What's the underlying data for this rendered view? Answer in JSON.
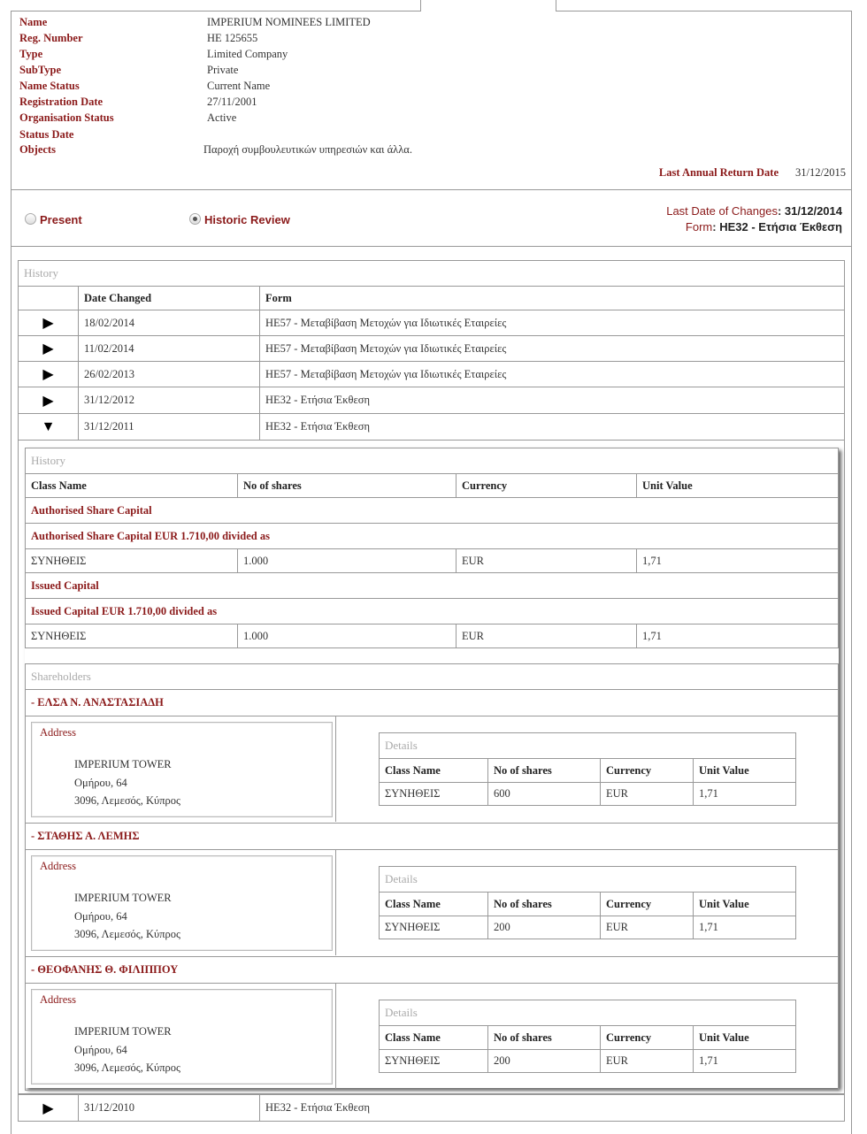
{
  "company": {
    "fields": [
      {
        "label": "Name",
        "value": "IMPERIUM NOMINEES LIMITED"
      },
      {
        "label": "Reg. Number",
        "value": "HE 125655"
      },
      {
        "label": "Type",
        "value": "Limited Company"
      },
      {
        "label": "SubType",
        "value": "Private"
      },
      {
        "label": "Name Status",
        "value": "Current Name"
      },
      {
        "label": "Registration Date",
        "value": "27/11/2001"
      },
      {
        "label": "Organisation Status",
        "value": "Active"
      },
      {
        "label": "Status Date",
        "value": ""
      },
      {
        "label": "Objects",
        "value": "Παροχή συμβουλευτικών υπηρεσιών και άλλα."
      }
    ],
    "last_annual_return_label": "Last Annual Return Date",
    "last_annual_return_value": "31/12/2015"
  },
  "view": {
    "present_label": "Present",
    "historic_label": "Historic Review",
    "selected": "Historic Review",
    "last_changes_label": "Last Date of Changes",
    "last_changes_value": "31/12/2014",
    "form_label": "Form",
    "form_value": "HE32 - Ετήσια Έκθεση"
  },
  "history": {
    "title": "History",
    "col_date": "Date Changed",
    "col_form": "Form",
    "rows": [
      {
        "date": "18/02/2014",
        "form": "HE57 - Μεταβίβαση Μετοχών για Ιδιωτικές Εταιρείες",
        "expanded": false
      },
      {
        "date": "11/02/2014",
        "form": "HE57 - Μεταβίβαση Μετοχών για Ιδιωτικές Εταιρείες",
        "expanded": false
      },
      {
        "date": "26/02/2013",
        "form": "HE57 - Μεταβίβαση Μετοχών για Ιδιωτικές Εταιρείες",
        "expanded": false
      },
      {
        "date": "31/12/2012",
        "form": "HE32 - Ετήσια Έκθεση",
        "expanded": false
      },
      {
        "date": "31/12/2011",
        "form": "HE32 - Ετήσια Έκθεση",
        "expanded": true
      },
      {
        "date": "31/12/2010",
        "form": "HE32 - Ετήσια Έκθεση",
        "expanded": false
      }
    ]
  },
  "detail": {
    "title": "History",
    "cols": [
      "Class Name",
      "No of shares",
      "Currency",
      "Unit Value"
    ],
    "authorised_heading": "Authorised Share Capital",
    "authorised_sub": "Authorised Share Capital EUR 1.710,00 divided as",
    "authorised_row": [
      "ΣΥΝΗΘΕΙΣ",
      "1.000",
      "EUR",
      "1,71"
    ],
    "issued_heading": "Issued Capital",
    "issued_sub": "Issued Capital EUR 1.710,00 divided as",
    "issued_row": [
      "ΣΥΝΗΘΕΙΣ",
      "1.000",
      "EUR",
      "1,71"
    ],
    "shareholders_title": "Shareholders",
    "address_label": "Address",
    "details_label": "Details",
    "shareholders": [
      {
        "name": "- ΕΛΣΑ Ν. ΑΝΑΣΤΑΣΙΑΔΗ",
        "address": [
          "IMPERIUM TOWER",
          "Ομήρου, 64",
          "3096, Λεμεσός, Κύπρος"
        ],
        "row": [
          "ΣΥΝΗΘΕΙΣ",
          "600",
          "EUR",
          "1,71"
        ]
      },
      {
        "name": "- ΣΤΑΘΗΣ Α. ΛΕΜΗΣ",
        "address": [
          "IMPERIUM TOWER",
          "Ομήρου, 64",
          "3096, Λεμεσός, Κύπρος"
        ],
        "row": [
          "ΣΥΝΗΘΕΙΣ",
          "200",
          "EUR",
          "1,71"
        ]
      },
      {
        "name": "- ΘΕΟΦΑΝΗΣ Θ. ΦΙΛΙΠΠΟΥ",
        "address": [
          "IMPERIUM TOWER",
          "Ομήρου, 64",
          "3096, Λεμεσός, Κύπρος"
        ],
        "row": [
          "ΣΥΝΗΘΕΙΣ",
          "200",
          "EUR",
          "1,71"
        ]
      }
    ]
  },
  "colors": {
    "label": "#8b1a1a",
    "border": "#999999"
  }
}
